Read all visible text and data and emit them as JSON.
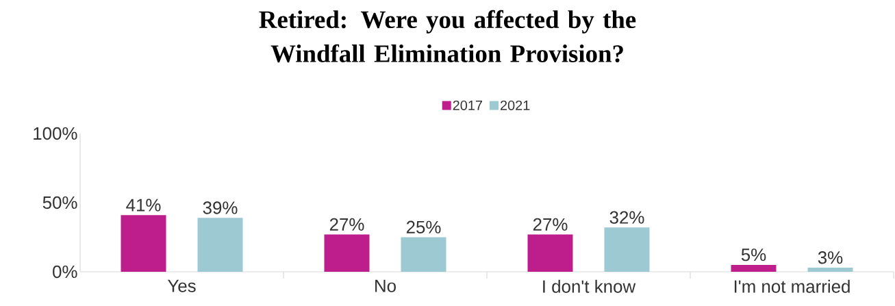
{
  "chart_data": {
    "type": "bar",
    "title": "Retired: Were you affected by the Windfall Elimination Provision?",
    "categories": [
      "Yes",
      "No",
      "I don't know",
      "I'm not married"
    ],
    "series": [
      {
        "name": "2017",
        "color": "#be1e8c",
        "values": [
          41,
          27,
          27,
          5
        ],
        "value_labels": [
          "41%",
          "27%",
          "27%",
          "5%"
        ]
      },
      {
        "name": "2021",
        "color": "#9dc9d3",
        "values": [
          39,
          25,
          32,
          3
        ],
        "value_labels": [
          "39%",
          "25%",
          "32%",
          "3%"
        ]
      }
    ],
    "ylim": [
      0,
      100
    ],
    "yticks": [
      {
        "value": 0,
        "label": "0%"
      },
      {
        "value": 50,
        "label": "50%"
      },
      {
        "value": 100,
        "label": "100%"
      }
    ],
    "grid": false,
    "legend": "top"
  }
}
